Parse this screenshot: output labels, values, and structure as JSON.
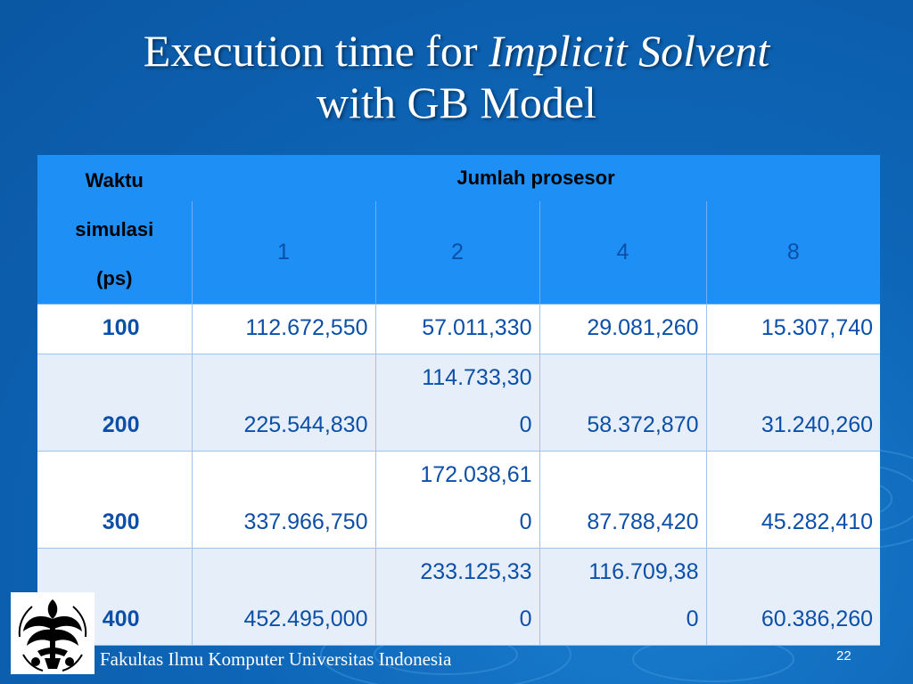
{
  "slide": {
    "title_line1_plain": "Execution time for ",
    "title_line1_italic": "Implicit Solvent",
    "title_line2": "with  GB  Model",
    "footer": "Fakultas Ilmu Komputer Universitas Indonesia",
    "page_number": "22"
  },
  "table": {
    "header_waktu": [
      "Waktu",
      "simulasi",
      "(ps)"
    ],
    "header_jumlah": "Jumlah prosesor",
    "processors": [
      "1",
      "2",
      "4",
      "8"
    ],
    "rows": [
      {
        "key": "100",
        "cells": [
          [
            "112.672,550"
          ],
          [
            "57.011,330"
          ],
          [
            "29.081,260"
          ],
          [
            "15.307,740"
          ]
        ]
      },
      {
        "key": "200",
        "cells": [
          [
            "225.544,830"
          ],
          [
            "114.733,30",
            "0"
          ],
          [
            "58.372,870"
          ],
          [
            "31.240,260"
          ]
        ]
      },
      {
        "key": "300",
        "cells": [
          [
            "337.966,750"
          ],
          [
            "172.038,61",
            "0"
          ],
          [
            "87.788,420"
          ],
          [
            "45.282,410"
          ]
        ]
      },
      {
        "key": "400",
        "cells": [
          [
            "452.495,000"
          ],
          [
            "233.125,33",
            "0"
          ],
          [
            "116.709,38",
            "0"
          ],
          [
            "60.386,260"
          ]
        ]
      }
    ]
  },
  "colors": {
    "background": "#0e66b8",
    "header_fill": "#1e8ff5",
    "row_white": "#ffffff",
    "row_light": "#e6eef9",
    "table_text": "#0b4fa8"
  },
  "logo": {
    "icon": "universitas-indonesia-emblem"
  }
}
